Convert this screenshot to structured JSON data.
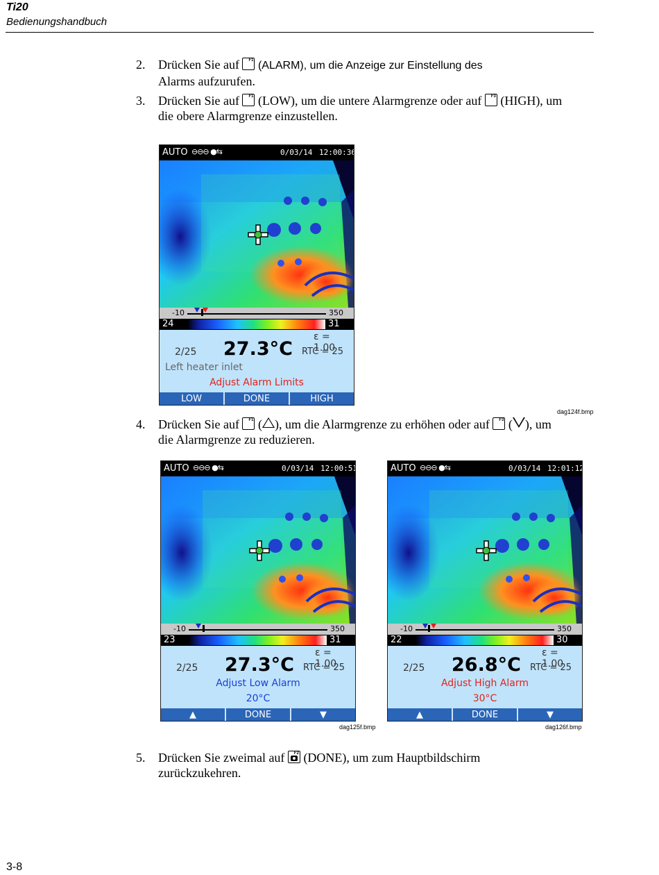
{
  "header": {
    "title": "Ti20",
    "subtitle": "Bedienungshandbuch"
  },
  "footer": {
    "page": "3-8"
  },
  "steps": [
    {
      "num": "2.",
      "a": "Drücken Sie auf",
      "key1": "F1",
      "b": "(ALARM), um die Anzeige zur Einstellung des",
      "c": "Alarms aufzurufen."
    },
    {
      "num": "3.",
      "a": "Drücken Sie auf",
      "key1": "F1",
      "b": "(LOW), um die untere Alarmgrenze oder auf",
      "key2": "F3",
      "c": "(HIGH), um",
      "d": "die obere Alarmgrenze einzustellen."
    },
    {
      "num": "4.",
      "a": "Drücken Sie auf",
      "key1": "F1",
      "b": "(",
      "c": "), um die Alarmgrenze zu erhöhen oder auf",
      "key2": "F3",
      "d": "(",
      "e": "), um",
      "f": "die Alarmgrenze zu reduzieren."
    },
    {
      "num": "5.",
      "a": "Drücken Sie zweimal auf",
      "key1": "F2",
      "b": "(DONE), um zum Hauptbildschirm",
      "c": "zurückzukehren."
    }
  ],
  "screens": [
    {
      "auto": "AUTO",
      "date": "0/03/14",
      "time": "12:00:36",
      "scale_min": "-10",
      "scale_max": "350",
      "pal_low": "24",
      "pal_high": "31",
      "epsilon": "ε = 1.00",
      "count": "2/25",
      "temp": "27.3°C",
      "rtc": "RTC =    25",
      "line1": "Left heater inlet",
      "line2": "Adjust Alarm Limits",
      "soft": [
        "LOW",
        "DONE",
        "HIGH"
      ],
      "caption": "dag124f.bmp"
    },
    {
      "auto": "AUTO",
      "date": "0/03/14",
      "time": "12:00:51",
      "scale_min": "-10",
      "scale_max": "350",
      "pal_low": "23",
      "pal_high": "31",
      "epsilon": "ε = 1.00",
      "count": "2/25",
      "temp": "27.3°C",
      "rtc": "RTC =    25",
      "line1": "Adjust Low Alarm",
      "line2": "20°C",
      "soft": [
        "▲",
        "DONE",
        "▼"
      ],
      "caption": "dag125f.bmp"
    },
    {
      "auto": "AUTO",
      "date": "0/03/14",
      "time": "12:01:12",
      "scale_min": "-10",
      "scale_max": "350",
      "pal_low": "22",
      "pal_high": "30",
      "epsilon": "ε = 1.00",
      "count": "2/25",
      "temp": "26.8°C",
      "rtc": "RTC =    25",
      "line1": "Adjust High Alarm",
      "line2": "30°C",
      "soft": [
        "▲",
        "DONE",
        "▼"
      ],
      "caption": "dag126f.bmp"
    }
  ]
}
